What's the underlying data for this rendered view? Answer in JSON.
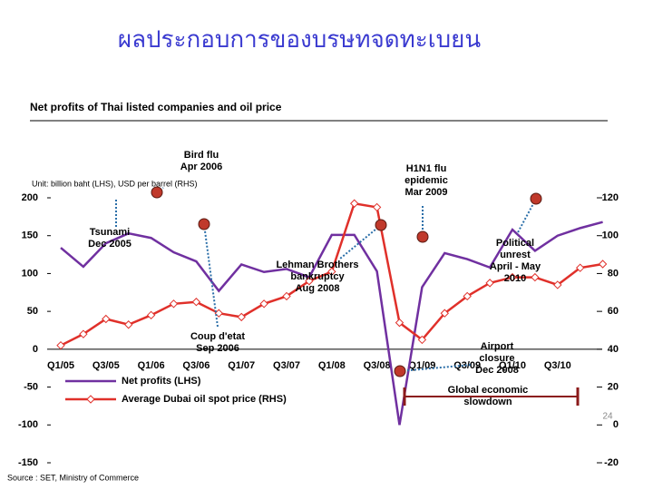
{
  "chart_data": {
    "type": "line",
    "title": "ผลประกอบการของบรษทจดทะเบยน",
    "subtitle": "Net profits of Thai listed companies and oil price",
    "unit_note": "Unit: billion baht (LHS), USD per barrel (RHS)",
    "source": "Source : SET, Ministry of Commerce",
    "page_number": "24",
    "categories": [
      "Q1/05",
      null,
      "Q3/05",
      null,
      "Q1/06",
      null,
      "Q3/06",
      null,
      "Q1/07",
      null,
      "Q3/07",
      null,
      "Q1/08",
      null,
      "Q3/08",
      null,
      "Q1/09",
      null,
      "Q3/09",
      null,
      "Q1/10",
      null,
      "Q3/10",
      null,
      null
    ],
    "series": [
      {
        "name": "Net profits (LHS)",
        "color": "#7030a0",
        "axis": "y",
        "values": [
          134,
          109,
          140,
          153,
          147,
          128,
          116,
          77,
          112,
          102,
          106,
          95,
          151,
          151,
          103,
          -100,
          82,
          127,
          119,
          108,
          158,
          130,
          150,
          160,
          168
        ]
      },
      {
        "name": "Average Dubai oil spot price (RHS)",
        "color": "#e0302a",
        "axis": "y2",
        "values": [
          42,
          48,
          56,
          53,
          58,
          64,
          65,
          59,
          57,
          64,
          68,
          76,
          81,
          117,
          115,
          54,
          45,
          59,
          68,
          75,
          78,
          78,
          74,
          83,
          85
        ]
      }
    ],
    "ylim": [
      -150,
      200
    ],
    "yticks": [
      -150,
      -100,
      -50,
      0,
      50,
      100,
      150,
      200
    ],
    "y2lim": [
      -20,
      120
    ],
    "y2ticks": [
      -20,
      0,
      20,
      40,
      60,
      80,
      100,
      120
    ],
    "annotations": [
      [
        "Bird flu",
        "Apr 2006"
      ],
      [
        "Tsunami",
        "Dec 2005"
      ],
      [
        "H1N1 flu",
        "epidemic",
        "Mar 2009"
      ],
      [
        "Lehman Brothers",
        "bankruptcy",
        "Aug 2008"
      ],
      [
        "Political",
        "unrest",
        "April - May",
        "2010"
      ],
      [
        "Coup d'etat",
        "Sep 2006"
      ],
      [
        "Airport",
        "closure",
        "Dec 2008"
      ],
      [
        "Global economic",
        "slowdown"
      ]
    ]
  }
}
